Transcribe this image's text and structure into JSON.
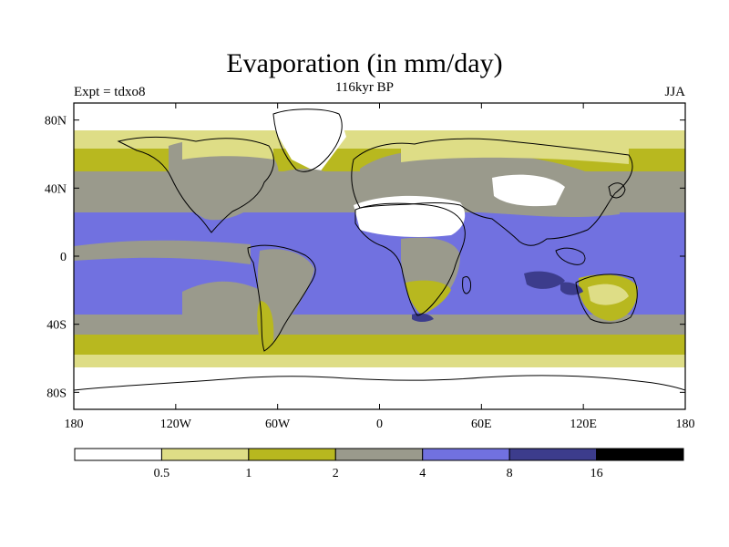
{
  "header": {
    "title": "Evaporation (in mm/day)",
    "subtitle": "116kyr BP",
    "left_label": "Expt = tdxo8",
    "right_label": "JJA"
  },
  "map": {
    "lon_range": [
      -180,
      180
    ],
    "lat_range": [
      -90,
      90
    ],
    "x_ticks": [
      {
        "value": -180,
        "label": "180"
      },
      {
        "value": -120,
        "label": "120W"
      },
      {
        "value": -60,
        "label": "60W"
      },
      {
        "value": 0,
        "label": "0"
      },
      {
        "value": 60,
        "label": "60E"
      },
      {
        "value": 120,
        "label": "120E"
      },
      {
        "value": 180,
        "label": "180"
      }
    ],
    "y_ticks": [
      {
        "value": 80,
        "label": "80N"
      },
      {
        "value": 40,
        "label": "40N"
      },
      {
        "value": 0,
        "label": "0"
      },
      {
        "value": -40,
        "label": "40S"
      },
      {
        "value": -80,
        "label": "80S"
      }
    ]
  },
  "colorbar": {
    "colors": [
      "#ffffff",
      "#dedd86",
      "#b8b81f",
      "#9a9a8c",
      "#7171e0",
      "#3c3c8c",
      "#000000"
    ],
    "labels": [
      "0.5",
      "1",
      "2",
      "4",
      "8",
      "16"
    ]
  },
  "colors": {
    "band_0": "#ffffff",
    "band_1": "#dedd86",
    "band_2": "#b8b81f",
    "band_3": "#9a9a8c",
    "band_4": "#7171e0",
    "band_5": "#3c3c8c"
  }
}
